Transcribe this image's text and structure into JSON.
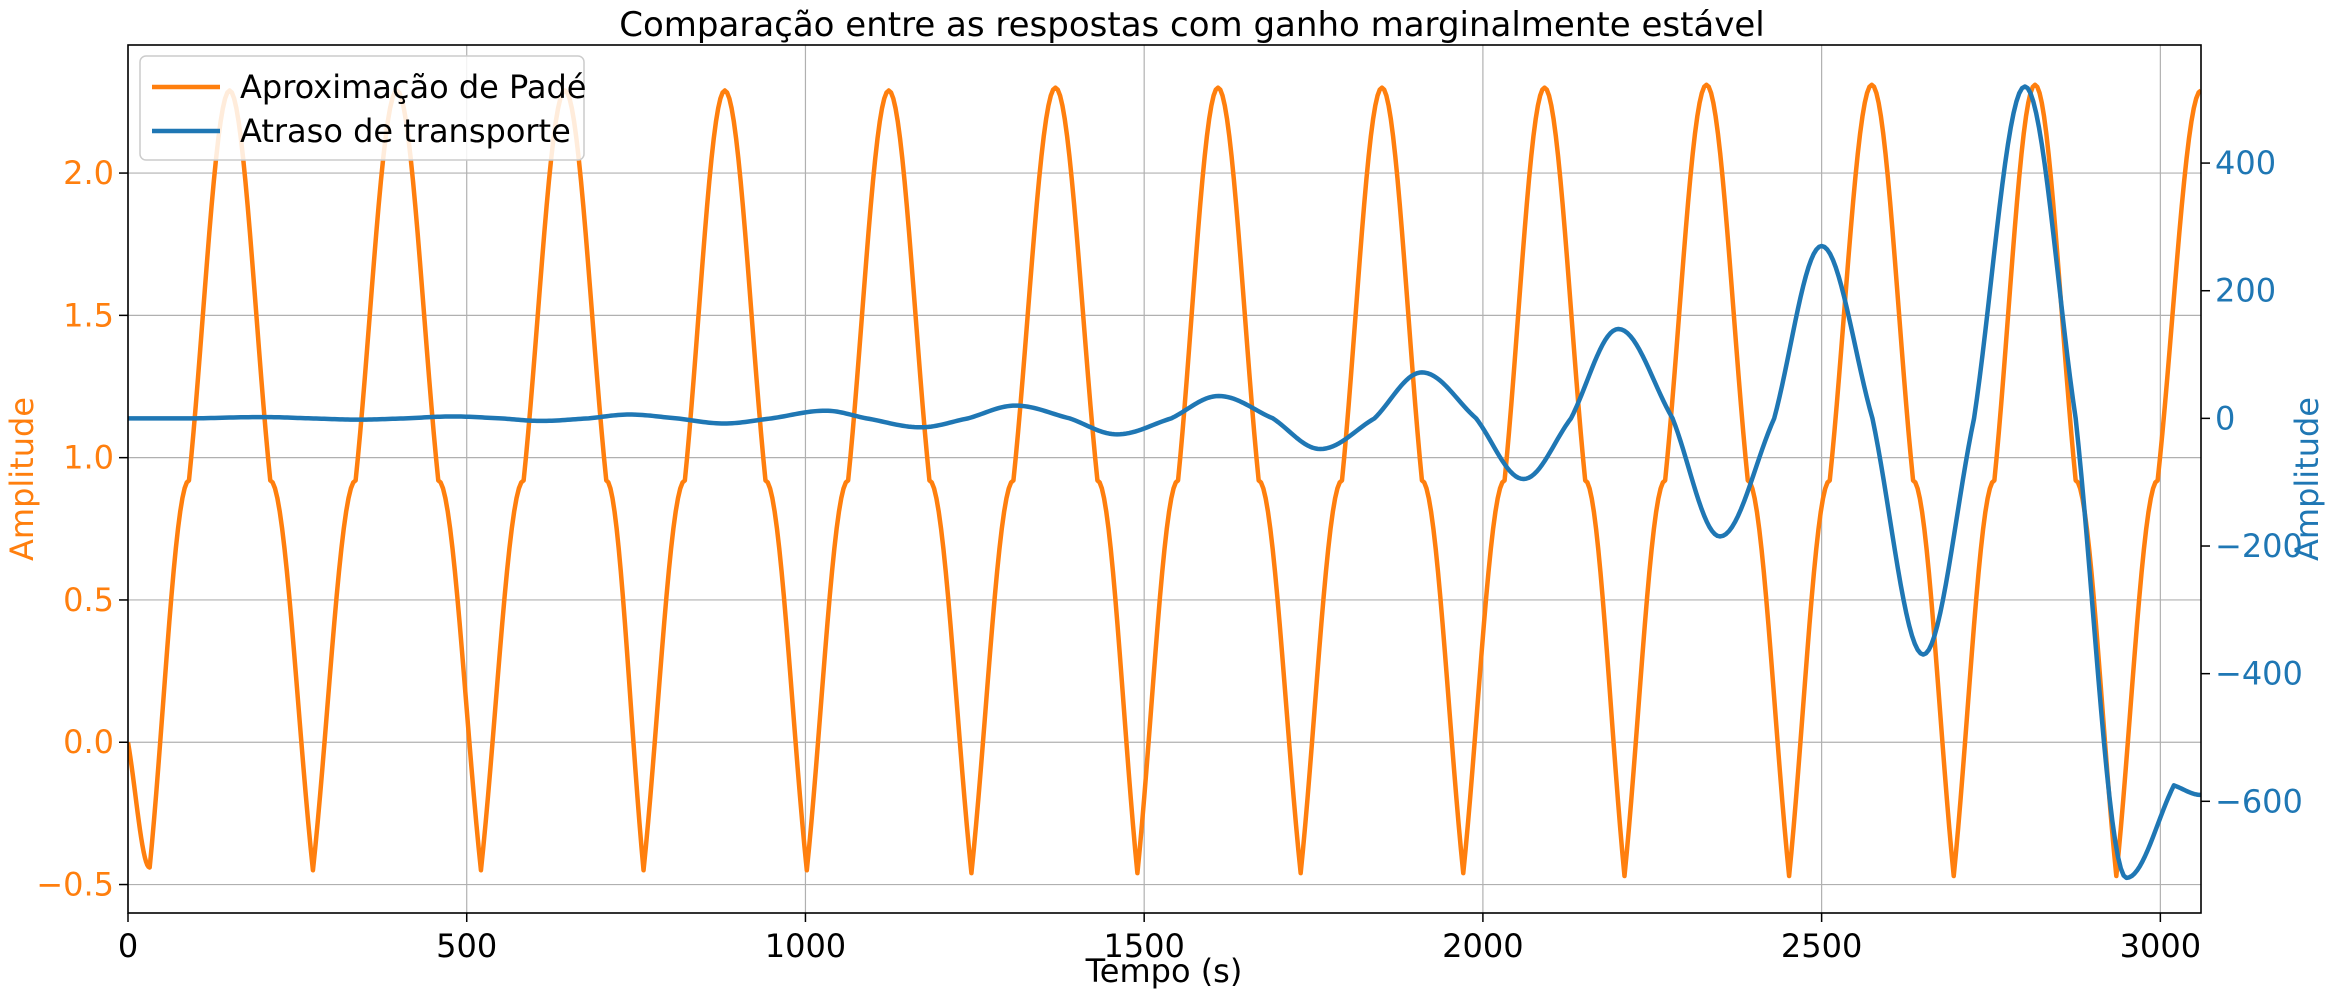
{
  "chart_data": {
    "type": "line",
    "title": "Comparação entre as respostas com ganho marginalmente estável",
    "xlabel": "Tempo (s)",
    "ylabel_left": "Amplitude",
    "ylabel_right": "Amplitude",
    "xlim": [
      0,
      3060
    ],
    "ylim_left": [
      -0.6,
      2.45
    ],
    "ylim_right": [
      -775,
      585
    ],
    "x_ticks": [
      0,
      500,
      1000,
      1500,
      2000,
      2500,
      3000
    ],
    "y_left_ticks": [
      -0.5,
      0.0,
      0.5,
      1.0,
      1.5,
      2.0
    ],
    "y_right_ticks": [
      -600,
      -400,
      -200,
      0,
      200,
      400
    ],
    "x_tick_labels": [
      "0",
      "500",
      "1000",
      "1500",
      "2000",
      "2500",
      "3000"
    ],
    "y_left_tick_labels": [
      "−0.5",
      "0.0",
      "0.5",
      "1.0",
      "1.5",
      "2.0"
    ],
    "y_right_tick_labels": [
      "−600",
      "−400",
      "−200",
      "0",
      "200",
      "400"
    ],
    "grid": true,
    "legend_position": "top-left",
    "series": [
      {
        "name": "Aproximação de Padé",
        "axis": "left",
        "color": "#ff7f0e",
        "x": [
          0,
          32,
          90,
          150,
          210,
          273,
          336,
          397,
          458,
          521,
          584,
          645,
          706,
          761,
          822,
          881,
          941,
          1002,
          1063,
          1123,
          1183,
          1245,
          1307,
          1369,
          1431,
          1490,
          1550,
          1609,
          1669,
          1731,
          1792,
          1851,
          1910,
          1971,
          2032,
          2091,
          2151,
          2209,
          2269,
          2330,
          2391,
          2452,
          2512,
          2574,
          2635,
          2695,
          2755,
          2815,
          2875,
          2935,
          2996,
          3060
        ],
        "y": [
          0.0,
          -0.44,
          0.92,
          2.29,
          0.92,
          -0.45,
          0.92,
          2.29,
          0.92,
          -0.45,
          0.92,
          2.29,
          0.92,
          -0.45,
          0.92,
          2.29,
          0.92,
          -0.45,
          0.92,
          2.29,
          0.92,
          -0.46,
          0.92,
          2.3,
          0.92,
          -0.46,
          0.92,
          2.3,
          0.92,
          -0.46,
          0.92,
          2.3,
          0.92,
          -0.46,
          0.92,
          2.3,
          0.92,
          -0.47,
          0.92,
          2.31,
          0.92,
          -0.47,
          0.92,
          2.31,
          0.92,
          -0.47,
          0.92,
          2.31,
          0.92,
          -0.47,
          0.92,
          2.29
        ]
      },
      {
        "name": "Atraso de transporte",
        "axis": "right",
        "color": "#1f77b4",
        "x": [
          0,
          100,
          200,
          270,
          340,
          410,
          480,
          550,
          610,
          680,
          740,
          810,
          880,
          950,
          1030,
          1090,
          1170,
          1240,
          1310,
          1390,
          1460,
          1540,
          1610,
          1690,
          1760,
          1840,
          1910,
          1990,
          2060,
          2130,
          2200,
          2280,
          2350,
          2430,
          2500,
          2575,
          2650,
          2725,
          2800,
          2875,
          2950,
          3020,
          3060
        ],
        "y": [
          0,
          0,
          2,
          0,
          -2,
          0,
          3,
          0,
          -4,
          0,
          6,
          0,
          -8,
          0,
          12,
          0,
          -14,
          0,
          20,
          0,
          -25,
          0,
          35,
          0,
          -48,
          0,
          72,
          0,
          -95,
          0,
          140,
          0,
          -185,
          0,
          270,
          0,
          -370,
          0,
          520,
          0,
          -720,
          -575,
          -590
        ]
      }
    ]
  }
}
